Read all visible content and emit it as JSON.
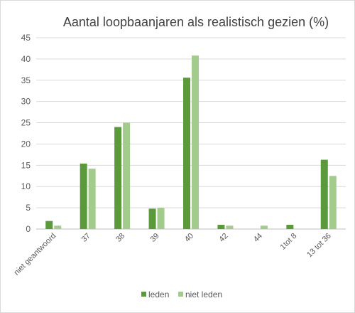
{
  "chart_data": {
    "type": "bar",
    "title": "Aantal loopbaanjaren als realistisch gezien (%)",
    "xlabel": "",
    "ylabel": "",
    "ylim": [
      0,
      45
    ],
    "yticks": [
      0,
      5,
      10,
      15,
      20,
      25,
      30,
      35,
      40,
      45
    ],
    "grid": true,
    "legend_position": "bottom",
    "categories": [
      "niet geantwoord",
      "37",
      "38",
      "39",
      "40",
      "42",
      "44",
      "1tot 8",
      "13 tot 36"
    ],
    "series": [
      {
        "name": "leden",
        "color": "#5b9a3b",
        "values": [
          1.9,
          15.4,
          24.0,
          4.8,
          35.6,
          1.0,
          0,
          1.0,
          16.3
        ]
      },
      {
        "name": "niet leden",
        "color": "#a3cb8c",
        "values": [
          0.8,
          14.2,
          25.0,
          5.0,
          40.8,
          0.8,
          0.8,
          0,
          12.5
        ]
      }
    ]
  }
}
